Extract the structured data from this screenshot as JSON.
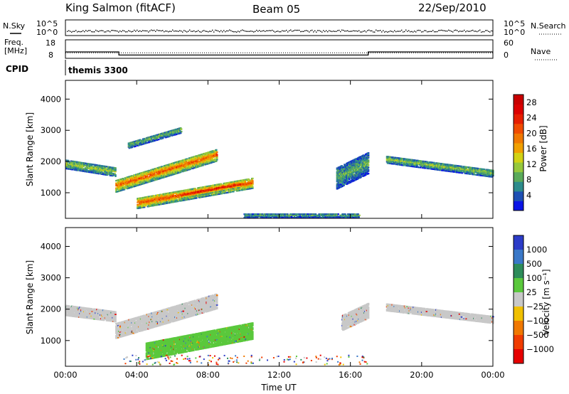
{
  "header": {
    "station": "King Salmon (fitACF)",
    "beam": "Beam 05",
    "date": "22/Sep/2010"
  },
  "noise_panel": {
    "left_label": "N.Sky",
    "right_label": "N.Search",
    "left_ticks": [
      "10^5",
      "10^0"
    ],
    "right_ticks": [
      "10^5",
      "10^0"
    ]
  },
  "freq_panel": {
    "left_label_1": "Freq.",
    "left_label_2": "[MHz]",
    "left_ticks": [
      "18",
      "8"
    ],
    "right_label": "Nave",
    "right_ticks": [
      "60",
      "0"
    ],
    "freq_steps": [
      {
        "t0": 0,
        "t1": 3,
        "mhz": 10.5
      },
      {
        "t0": 3,
        "t1": 17,
        "mhz": 8.3
      },
      {
        "t0": 17,
        "t1": 24,
        "mhz": 10.5
      }
    ],
    "nave_level": 18
  },
  "cpid": {
    "label": "CPID",
    "program": "themis 3300"
  },
  "chart_data": [
    {
      "type": "heatmap",
      "name_key": "power",
      "ylabel": "Slant Range [km]",
      "xlabel": "",
      "x_ticks": [
        "00:00",
        "04:00",
        "08:00",
        "12:00",
        "16:00",
        "20:00",
        "00:00"
      ],
      "x_range": [
        0,
        24
      ],
      "y_ticks": [
        "1000",
        "2000",
        "3000",
        "4000"
      ],
      "y_range": [
        180,
        4600
      ],
      "colorbar": {
        "label": "Power [dB]",
        "ticks": [
          "4",
          "8",
          "12",
          "16",
          "20",
          "24",
          "28"
        ],
        "range": [
          0,
          30
        ],
        "colors": [
          "#0a14e6",
          "#1e50b4",
          "#2d8c8c",
          "#5aaa5a",
          "#96c83c",
          "#d2d214",
          "#f0a000",
          "#f07800",
          "#f04b00",
          "#e61e00",
          "#dc0000",
          "#c80000"
        ]
      },
      "features": [
        {
          "t0": 0.0,
          "t1": 2.8,
          "r0": 1950,
          "r1": 1700,
          "w": 300,
          "val": 12
        },
        {
          "t0": 2.8,
          "t1": 8.5,
          "r0": 1250,
          "r1": 2250,
          "w": 400,
          "val": 21
        },
        {
          "t0": 3.5,
          "t1": 6.5,
          "r0": 2550,
          "r1": 3050,
          "w": 200,
          "val": 10
        },
        {
          "t0": 4.0,
          "t1": 10.5,
          "r0": 700,
          "r1": 1350,
          "w": 350,
          "val": 22
        },
        {
          "t0": 6.5,
          "t1": 9.8,
          "r0": 950,
          "r1": 1300,
          "w": 200,
          "val": 27
        },
        {
          "t0": 15.2,
          "t1": 17.0,
          "r0": 1500,
          "r1": 2000,
          "w": 700,
          "val": 9
        },
        {
          "t0": 18.0,
          "t1": 24.0,
          "r0": 2100,
          "r1": 1650,
          "w": 250,
          "val": 11
        },
        {
          "t0": 10.0,
          "t1": 16.5,
          "r0": 300,
          "r1": 300,
          "w": 150,
          "val": 8
        }
      ]
    },
    {
      "type": "heatmap",
      "name_key": "velocity",
      "ylabel": "Slant Range [km]",
      "xlabel": "Time UT",
      "x_ticks": [
        "00:00",
        "04:00",
        "08:00",
        "12:00",
        "16:00",
        "20:00",
        "00:00"
      ],
      "x_range": [
        0,
        24
      ],
      "y_ticks": [
        "1000",
        "2000",
        "3000",
        "4000"
      ],
      "y_range": [
        180,
        4600
      ],
      "colorbar": {
        "label": "Velocity [m s⁻¹]",
        "ticks": [
          "1000",
          "500",
          "100",
          "25",
          "−25",
          "−100",
          "−500",
          "−1000"
        ],
        "colors": [
          "#2c3cc8",
          "#3a78c8",
          "#2d8c5a",
          "#5ac83c",
          "#c8c8c8",
          "#f0c000",
          "#f07800",
          "#f03c00",
          "#e60000"
        ]
      },
      "features": [
        {
          "t0": 0.0,
          "t1": 2.8,
          "r0": 2000,
          "r1": 1800,
          "w": 350,
          "val": "ground"
        },
        {
          "t0": 2.8,
          "t1": 8.5,
          "r0": 1350,
          "r1": 2300,
          "w": 500,
          "val": "ground"
        },
        {
          "t0": 4.5,
          "t1": 10.5,
          "r0": 700,
          "r1": 1350,
          "w": 550,
          "val": "green"
        },
        {
          "t0": 18.0,
          "t1": 24.0,
          "r0": 2100,
          "r1": 1700,
          "w": 250,
          "val": "ground"
        },
        {
          "t0": 15.5,
          "t1": 17.0,
          "r0": 1600,
          "r1": 2000,
          "w": 500,
          "val": "ground"
        }
      ]
    }
  ]
}
